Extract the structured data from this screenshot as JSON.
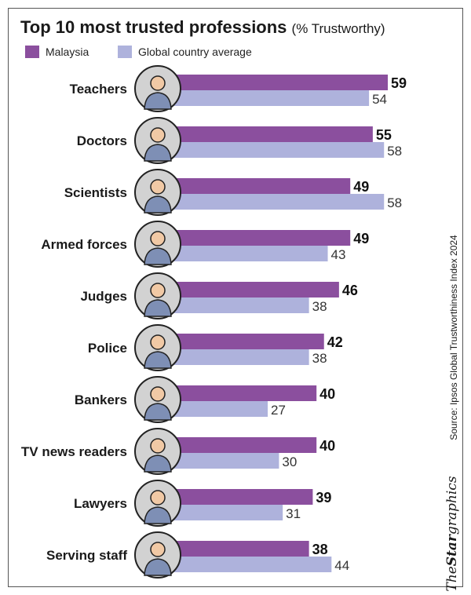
{
  "title": "Top 10 most trusted professions",
  "subtitle": "(% Trustworthy)",
  "legend": [
    {
      "label": "Malaysia",
      "color": "#8b4f9e"
    },
    {
      "label": "Global country average",
      "color": "#aeb2dc"
    }
  ],
  "source": "Source: Ipsos Global Trustworthiness Index 2024",
  "brand": {
    "the": "The",
    "star": "Star",
    "graphics": "graphics"
  },
  "chart_data": {
    "type": "bar",
    "orientation": "horizontal",
    "categories": [
      "Teachers",
      "Doctors",
      "Scientists",
      "Armed forces",
      "Judges",
      "Police",
      "Bankers",
      "TV news readers",
      "Lawyers",
      "Serving staff"
    ],
    "icons": [
      "teacher-icon",
      "doctor-icon",
      "scientist-icon",
      "soldier-icon",
      "judge-icon",
      "police-icon",
      "banker-icon",
      "news-reader-icon",
      "lawyer-icon",
      "waiter-icon"
    ],
    "series": [
      {
        "name": "Malaysia",
        "values": [
          59,
          55,
          49,
          49,
          46,
          42,
          40,
          40,
          39,
          38
        ],
        "color": "#8b4f9e"
      },
      {
        "name": "Global country average",
        "values": [
          54,
          58,
          58,
          43,
          38,
          38,
          27,
          30,
          31,
          44
        ],
        "color": "#aeb2dc"
      }
    ],
    "xlim": [
      0,
      59
    ],
    "grid": false,
    "legend_position": "top-left"
  }
}
